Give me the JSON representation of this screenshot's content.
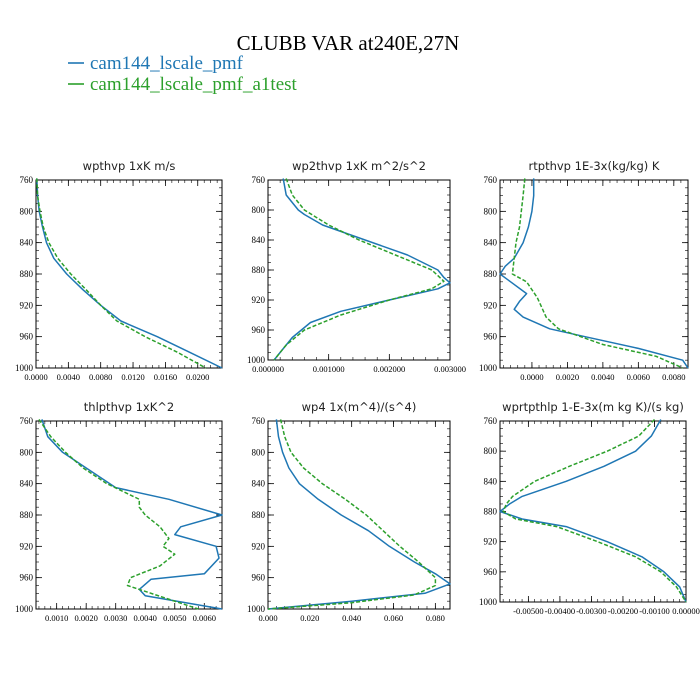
{
  "figure": {
    "title": "CLUBB VAR at240E,27N",
    "legend": [
      {
        "label": "cam144_lscale_pmf",
        "color": "#1f77b4",
        "dash": "solid"
      },
      {
        "label": "cam144_lscale_pmf_a1test",
        "color": "#2ca02c",
        "dash": "dashed"
      }
    ]
  },
  "chart_data": [
    {
      "type": "line",
      "title": "wpthvp  1xK m/s",
      "xlim": [
        0.0,
        0.023
      ],
      "ylim": [
        760,
        1000
      ],
      "xticks": [
        0.0,
        0.004,
        0.008,
        0.012,
        0.016,
        0.02
      ],
      "xtick_labels": [
        "0.0000",
        "0.0040",
        "0.0080",
        "0.0120",
        "0.0160",
        "0.0200"
      ],
      "yticks": [
        760,
        800,
        840,
        880,
        920,
        960,
        1000
      ],
      "series": [
        {
          "name": "cam144_lscale_pmf",
          "y": [
            758,
            780,
            800,
            820,
            840,
            860,
            880,
            900,
            920,
            940,
            960,
            980,
            1000
          ],
          "x": [
            0.0001,
            0.0002,
            0.0004,
            0.0008,
            0.0013,
            0.0022,
            0.0038,
            0.0058,
            0.008,
            0.0105,
            0.015,
            0.019,
            0.023
          ]
        },
        {
          "name": "cam144_lscale_pmf_a1test",
          "y": [
            758,
            780,
            800,
            820,
            840,
            860,
            880,
            900,
            920,
            940,
            960,
            980,
            1000
          ],
          "x": [
            0.0001,
            0.0002,
            0.0005,
            0.0009,
            0.0016,
            0.0027,
            0.0043,
            0.0062,
            0.008,
            0.01,
            0.0135,
            0.0175,
            0.021
          ]
        }
      ]
    },
    {
      "type": "line",
      "title": "wp2thvp  1xK m^2/s^2",
      "xlim": [
        0.0,
        0.003
      ],
      "ylim": [
        760,
        1000
      ],
      "xticks": [
        0.0,
        0.001,
        0.002,
        0.003
      ],
      "xtick_labels": [
        "0.000000",
        "0.001000",
        "0.002000",
        "0.003000"
      ],
      "yticks": [
        760,
        800,
        840,
        880,
        920,
        960,
        1000
      ],
      "series": [
        {
          "name": "cam144_lscale_pmf",
          "y": [
            758,
            780,
            800,
            806,
            820,
            840,
            860,
            880,
            890,
            897,
            905,
            920,
            935,
            950,
            970,
            990,
            1000
          ],
          "x": [
            0.00025,
            0.0003,
            0.0005,
            0.0006,
            0.0009,
            0.0016,
            0.0023,
            0.0028,
            0.0029,
            0.003,
            0.0028,
            0.002,
            0.0012,
            0.0007,
            0.0004,
            0.0002,
            0.0001
          ]
        },
        {
          "name": "cam144_lscale_pmf_a1test",
          "y": [
            758,
            780,
            800,
            820,
            840,
            860,
            880,
            895,
            905,
            920,
            940,
            960,
            980,
            1000
          ],
          "x": [
            0.0003,
            0.0004,
            0.0006,
            0.001,
            0.0015,
            0.0021,
            0.0027,
            0.0029,
            0.0027,
            0.002,
            0.0012,
            0.0006,
            0.0003,
            0.0001
          ]
        }
      ]
    },
    {
      "type": "line",
      "title": "rtpthvp  1E-3x(kg/kg) K",
      "xlim": [
        -0.0018,
        0.0088
      ],
      "ylim": [
        760,
        1000
      ],
      "xticks": [
        0.0,
        0.002,
        0.004,
        0.006,
        0.008
      ],
      "xtick_labels": [
        "0.0000",
        "0.0020",
        "0.0040",
        "0.0060",
        "0.0080"
      ],
      "yticks": [
        760,
        800,
        840,
        880,
        920,
        960,
        1000
      ],
      "series": [
        {
          "name": "cam144_lscale_pmf",
          "y": [
            758,
            780,
            800,
            820,
            840,
            860,
            870,
            880,
            890,
            905,
            915,
            925,
            935,
            950,
            960,
            975,
            990,
            1000
          ],
          "x": [
            0.0001,
            0.0001,
            0.0,
            -0.0002,
            -0.0005,
            -0.001,
            -0.0015,
            -0.0018,
            -0.0012,
            -0.0003,
            -0.0007,
            -0.001,
            -0.0005,
            0.001,
            0.003,
            0.006,
            0.0085,
            0.0088
          ]
        },
        {
          "name": "cam144_lscale_pmf_a1test",
          "y": [
            758,
            780,
            800,
            820,
            840,
            860,
            880,
            890,
            900,
            910,
            920,
            935,
            950,
            970,
            985,
            1000
          ],
          "x": [
            -0.0004,
            -0.0005,
            -0.0006,
            -0.0007,
            -0.0009,
            -0.001,
            -0.0011,
            -0.0003,
            0.0,
            0.0003,
            0.0005,
            0.0008,
            0.0015,
            0.004,
            0.007,
            0.0085
          ]
        }
      ]
    },
    {
      "type": "line",
      "title": "thlpthvp  1xK^2",
      "xlim": [
        0.0003,
        0.0066
      ],
      "ylim": [
        760,
        1000
      ],
      "xticks": [
        0.001,
        0.002,
        0.003,
        0.004,
        0.005,
        0.006
      ],
      "xtick_labels": [
        "0.0010",
        "0.0020",
        "0.0030",
        "0.0040",
        "0.0050",
        "0.0060"
      ],
      "yticks": [
        760,
        800,
        840,
        880,
        920,
        960,
        1000
      ],
      "series": [
        {
          "name": "cam144_lscale_pmf",
          "y": [
            758,
            780,
            800,
            820,
            845,
            860,
            880,
            895,
            905,
            920,
            935,
            955,
            962,
            975,
            983,
            1000
          ],
          "x": [
            0.0005,
            0.0007,
            0.0012,
            0.002,
            0.003,
            0.0048,
            0.0066,
            0.0052,
            0.005,
            0.0064,
            0.0065,
            0.006,
            0.0042,
            0.0038,
            0.004,
            0.0066
          ]
        },
        {
          "name": "cam144_lscale_pmf_a1test",
          "y": [
            758,
            780,
            800,
            820,
            840,
            860,
            870,
            880,
            895,
            910,
            920,
            930,
            945,
            960,
            970,
            985,
            1000
          ],
          "x": [
            0.0004,
            0.0008,
            0.0013,
            0.0019,
            0.0027,
            0.0038,
            0.0038,
            0.004,
            0.0045,
            0.0048,
            0.0046,
            0.005,
            0.0045,
            0.0035,
            0.0034,
            0.0046,
            0.0058
          ]
        }
      ]
    },
    {
      "type": "line",
      "title": "wp4  1x(m^4)/(s^4)",
      "xlim": [
        0.0,
        0.087
      ],
      "ylim": [
        760,
        1000
      ],
      "xticks": [
        0.0,
        0.02,
        0.04,
        0.06,
        0.08
      ],
      "xtick_labels": [
        "0.000",
        "0.020",
        "0.040",
        "0.060",
        "0.080"
      ],
      "yticks": [
        760,
        800,
        840,
        880,
        920,
        960,
        1000
      ],
      "series": [
        {
          "name": "cam144_lscale_pmf",
          "y": [
            758,
            780,
            800,
            820,
            840,
            860,
            880,
            900,
            920,
            940,
            955,
            968,
            980,
            990,
            1000
          ],
          "x": [
            0.004,
            0.005,
            0.007,
            0.01,
            0.015,
            0.024,
            0.035,
            0.048,
            0.058,
            0.07,
            0.08,
            0.087,
            0.075,
            0.04,
            0.0
          ]
        },
        {
          "name": "cam144_lscale_pmf_a1test",
          "y": [
            758,
            780,
            800,
            820,
            840,
            860,
            880,
            900,
            920,
            940,
            960,
            970,
            982,
            992,
            1000
          ],
          "x": [
            0.006,
            0.008,
            0.011,
            0.017,
            0.026,
            0.037,
            0.047,
            0.055,
            0.063,
            0.072,
            0.08,
            0.08,
            0.07,
            0.04,
            0.0
          ]
        }
      ]
    },
    {
      "type": "line",
      "title": "wprtpthlp  1-E-3x(m kg K)/(s kg)",
      "xlim": [
        -0.0059,
        0.0
      ],
      "ylim": [
        760,
        1000
      ],
      "xticks": [
        -0.005,
        -0.004,
        -0.003,
        -0.002,
        -0.001,
        0.0
      ],
      "xtick_labels": [
        "-0.00500",
        "-0.00400",
        "-0.00300",
        "-0.00200",
        "-0.00100",
        "0.00000"
      ],
      "yticks": [
        760,
        800,
        840,
        880,
        920,
        960,
        1000
      ],
      "series": [
        {
          "name": "cam144_lscale_pmf",
          "y": [
            758,
            780,
            800,
            820,
            840,
            860,
            870,
            880,
            890,
            900,
            920,
            940,
            960,
            980,
            1000
          ],
          "x": [
            -0.0008,
            -0.0011,
            -0.0016,
            -0.0026,
            -0.0038,
            -0.0052,
            -0.0056,
            -0.0059,
            -0.0052,
            -0.0038,
            -0.0025,
            -0.0014,
            -0.0007,
            -0.0002,
            0.0
          ]
        },
        {
          "name": "cam144_lscale_pmf_a1test",
          "y": [
            758,
            780,
            800,
            820,
            840,
            860,
            870,
            880,
            890,
            900,
            920,
            940,
            960,
            980,
            1000
          ],
          "x": [
            -0.001,
            -0.0015,
            -0.0025,
            -0.0037,
            -0.0048,
            -0.0055,
            -0.0057,
            -0.0058,
            -0.0054,
            -0.0041,
            -0.0028,
            -0.0016,
            -0.0008,
            -0.0003,
            0.0
          ]
        }
      ]
    }
  ]
}
